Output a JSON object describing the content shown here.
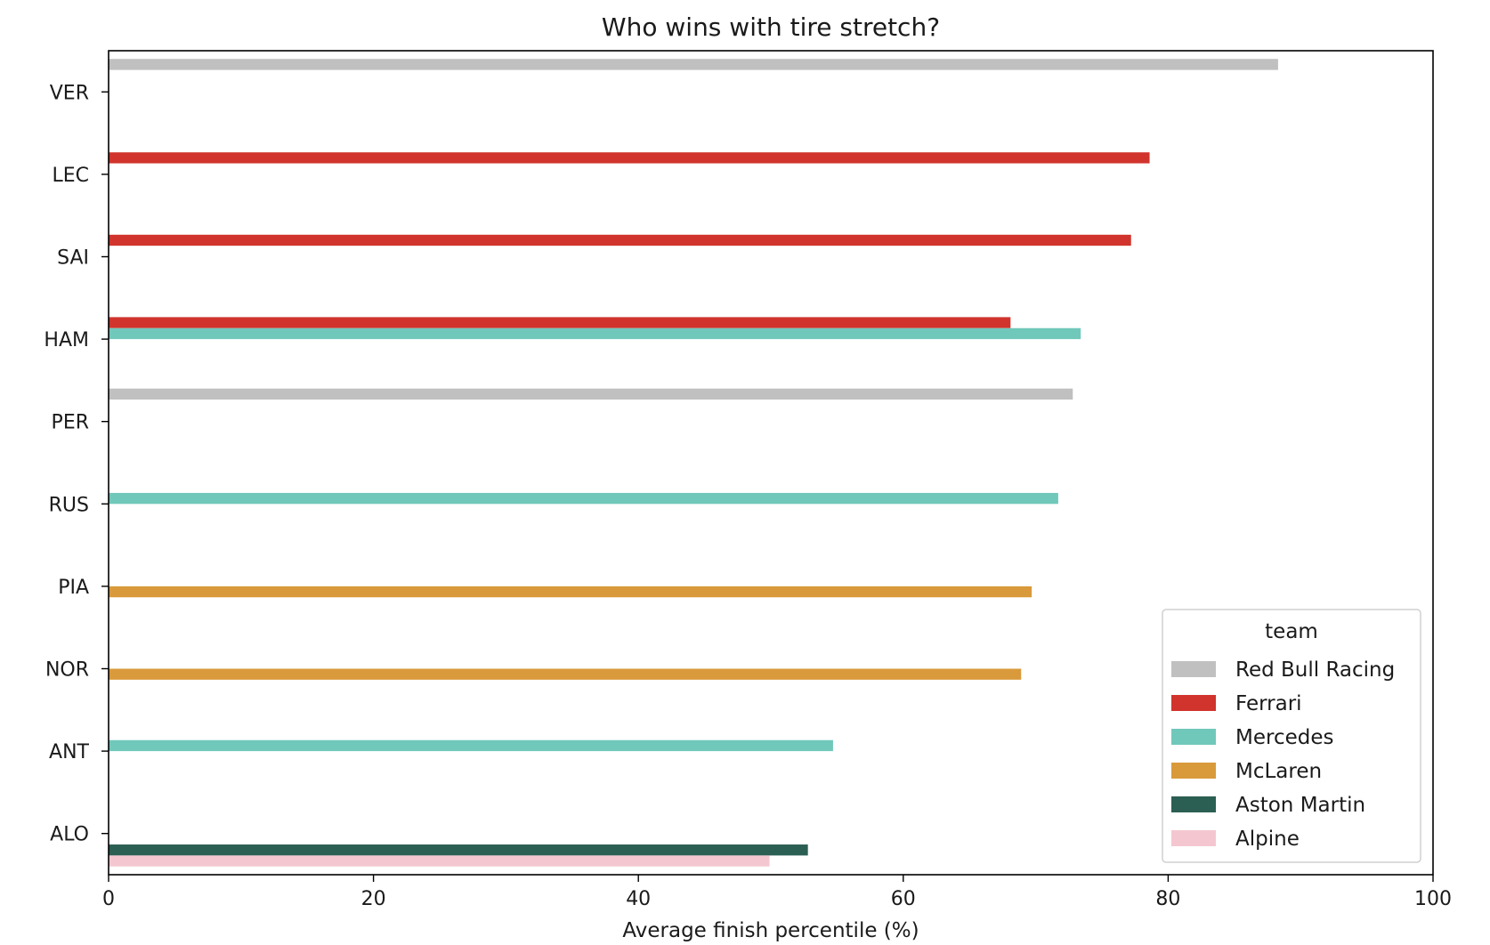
{
  "chart_data": {
    "type": "bar",
    "orientation": "horizontal",
    "title": "Who wins with tire stretch?",
    "xlabel": "Average finish percentile (%)",
    "ylabel": "",
    "xlim": [
      0,
      100
    ],
    "xticks": [
      0,
      20,
      40,
      60,
      80,
      100
    ],
    "categories": [
      "VER",
      "LEC",
      "SAI",
      "HAM",
      "PER",
      "RUS",
      "PIA",
      "NOR",
      "ANT",
      "ALO"
    ],
    "grid": false,
    "legend": {
      "title": "team",
      "placement": "lower-right"
    },
    "series": [
      {
        "name": "Red Bull Racing",
        "color": "#c0c0c0",
        "values": [
          88.3,
          null,
          null,
          null,
          72.8,
          null,
          null,
          null,
          null,
          null
        ]
      },
      {
        "name": "Ferrari",
        "color": "#d0342c",
        "values": [
          null,
          78.6,
          77.2,
          68.1,
          null,
          null,
          null,
          null,
          null,
          null
        ]
      },
      {
        "name": "Mercedes",
        "color": "#70c8bb",
        "values": [
          null,
          null,
          null,
          73.4,
          null,
          71.7,
          null,
          null,
          54.7,
          null
        ]
      },
      {
        "name": "McLaren",
        "color": "#d99a3b",
        "values": [
          null,
          null,
          null,
          null,
          null,
          null,
          69.7,
          68.9,
          null,
          null
        ]
      },
      {
        "name": "Aston Martin",
        "color": "#2b5f53",
        "values": [
          null,
          null,
          null,
          null,
          null,
          null,
          null,
          null,
          null,
          52.8
        ]
      },
      {
        "name": "Alpine",
        "color": "#f4c7d0",
        "values": [
          null,
          null,
          null,
          null,
          null,
          null,
          null,
          null,
          null,
          49.9
        ]
      }
    ]
  }
}
